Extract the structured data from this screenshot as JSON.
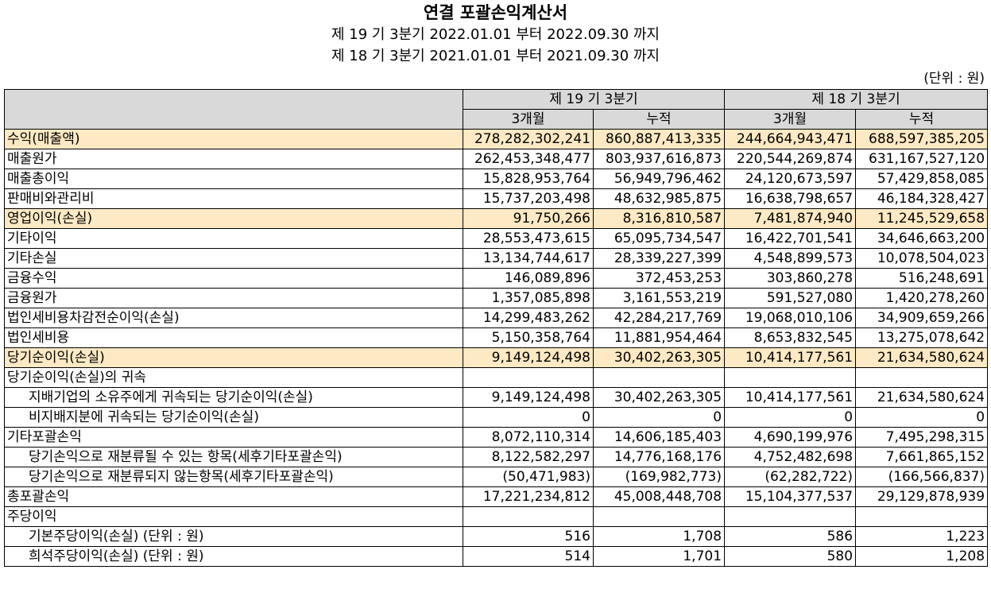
{
  "header": {
    "title": "연결 포괄손익계산서",
    "period_current": "제 19 기 3분기 2022.01.01 부터 2022.09.30 까지",
    "period_prior": "제 18 기 3분기 2021.01.01 부터 2021.09.30 까지",
    "unit": "(단위 : 원)"
  },
  "table": {
    "group_headers": [
      "제 19 기 3분기",
      "제 18 기 3분기"
    ],
    "sub_headers": [
      "3개월",
      "누적",
      "3개월",
      "누적"
    ],
    "rows": [
      {
        "label": "수익(매출액)",
        "values": [
          "278,282,302,241",
          "860,887,413,335",
          "244,664,943,471",
          "688,597,385,205"
        ]
      },
      {
        "label": "매출원가",
        "values": [
          "262,453,348,477",
          "803,937,616,873",
          "220,544,269,874",
          "631,167,527,120"
        ]
      },
      {
        "label": "매출총이익",
        "values": [
          "15,828,953,764",
          "56,949,796,462",
          "24,120,673,597",
          "57,429,858,085"
        ]
      },
      {
        "label": "판매비와관리비",
        "values": [
          "15,737,203,498",
          "48,632,985,875",
          "16,638,798,657",
          "46,184,328,427"
        ]
      },
      {
        "label": "영업이익(손실)",
        "values": [
          "91,750,266",
          "8,316,810,587",
          "7,481,874,940",
          "11,245,529,658"
        ]
      },
      {
        "label": "기타이익",
        "values": [
          "28,553,473,615",
          "65,095,734,547",
          "16,422,701,541",
          "34,646,663,200"
        ]
      },
      {
        "label": "기타손실",
        "values": [
          "13,134,744,617",
          "28,339,227,399",
          "4,548,899,573",
          "10,078,504,023"
        ]
      },
      {
        "label": "금융수익",
        "values": [
          "146,089,896",
          "372,453,253",
          "303,860,278",
          "516,248,691"
        ]
      },
      {
        "label": "금융원가",
        "values": [
          "1,357,085,898",
          "3,161,553,219",
          "591,527,080",
          "1,420,278,260"
        ]
      },
      {
        "label": "법인세비용차감전순이익(손실)",
        "values": [
          "14,299,483,262",
          "42,284,217,769",
          "19,068,010,106",
          "34,909,659,266"
        ]
      },
      {
        "label": "법인세비용",
        "values": [
          "5,150,358,764",
          "11,881,954,464",
          "8,653,832,545",
          "13,275,078,642"
        ]
      },
      {
        "label": "당기순이익(손실)",
        "values": [
          "9,149,124,498",
          "30,402,263,305",
          "10,414,177,561",
          "21,634,580,624"
        ]
      },
      {
        "label": "당기순이익(손실)의 귀속",
        "values": [
          "",
          "",
          "",
          ""
        ]
      },
      {
        "label": "지배기업의 소유주에게 귀속되는 당기순이익(손실)",
        "values": [
          "9,149,124,498",
          "30,402,263,305",
          "10,414,177,561",
          "21,634,580,624"
        ]
      },
      {
        "label": "비지배지분에 귀속되는 당기순이익(손실)",
        "values": [
          "0",
          "0",
          "0",
          "0"
        ]
      },
      {
        "label": "기타포괄손익",
        "values": [
          "8,072,110,314",
          "14,606,185,403",
          "4,690,199,976",
          "7,495,298,315"
        ]
      },
      {
        "label": "당기손익으로 재분류될 수 있는 항목(세후기타포괄손익)",
        "values": [
          "8,122,582,297",
          "14,776,168,176",
          "4,752,482,698",
          "7,661,865,152"
        ]
      },
      {
        "label": "당기손익으로 재분류되지 않는항목(세후기타포괄손익)",
        "values": [
          "(50,471,983)",
          "(169,982,773)",
          "(62,282,722)",
          "(166,566,837)"
        ]
      },
      {
        "label": "총포괄손익",
        "values": [
          "17,221,234,812",
          "45,008,448,708",
          "15,104,377,537",
          "29,129,878,939"
        ]
      },
      {
        "label": "주당이익",
        "values": [
          "",
          "",
          "",
          ""
        ]
      },
      {
        "label": "기본주당이익(손실) (단위 : 원)",
        "values": [
          "516",
          "1,708",
          "586",
          "1,223"
        ]
      },
      {
        "label": "희석주당이익(손실) (단위 : 원)",
        "values": [
          "514",
          "1,701",
          "580",
          "1,208"
        ]
      }
    ]
  },
  "colors": {
    "header_bg": "#d9d9d9",
    "highlight_bg": "#fde9c3"
  }
}
